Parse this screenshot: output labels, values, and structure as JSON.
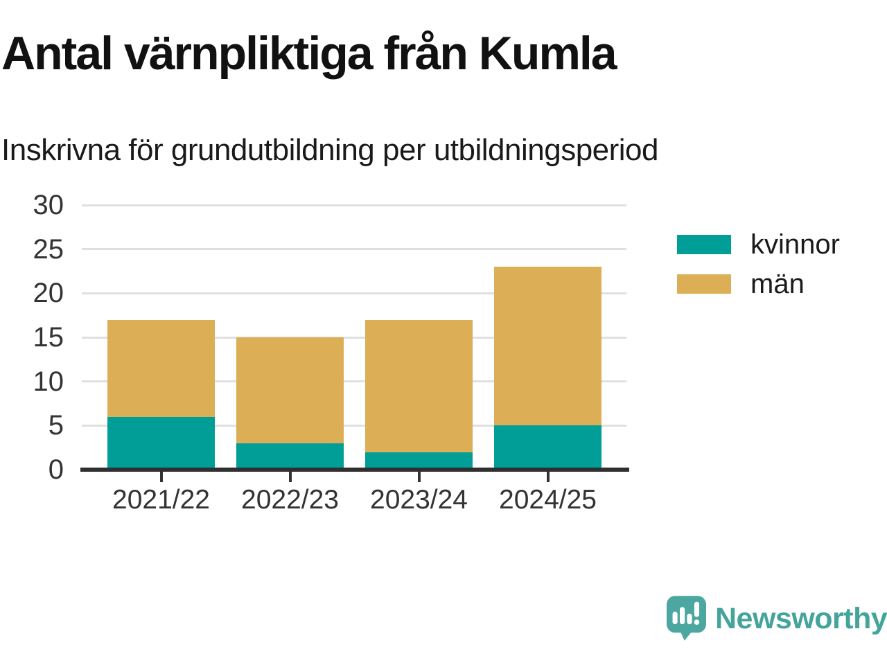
{
  "header": {
    "title": "Antal värnpliktiga från Kumla",
    "subtitle": "Inskrivna för grundutbildning per utbildningsperiod"
  },
  "chart_data": {
    "type": "bar",
    "stacked": true,
    "title": "Antal värnpliktiga från Kumla",
    "subtitle": "Inskrivna för grundutbildning per utbildningsperiod",
    "categories": [
      "2021/22",
      "2022/23",
      "2023/24",
      "2024/25"
    ],
    "series": [
      {
        "name": "kvinnor",
        "color": "#009e97",
        "values": [
          6,
          3,
          2,
          5
        ]
      },
      {
        "name": "män",
        "color": "#dcae55",
        "values": [
          11,
          12,
          15,
          18
        ]
      }
    ],
    "stack_totals": [
      17,
      15,
      17,
      23
    ],
    "xlabel": "",
    "ylabel": "",
    "ylim": [
      0,
      30
    ],
    "yticks": [
      0,
      5,
      10,
      15,
      20,
      25,
      30
    ],
    "grid": true,
    "legend_position": "right"
  },
  "branding": {
    "logo_text": "Newsworthy",
    "logo_icon": "newsworthy-speech-bubble-bar-chart-icon",
    "logo_text_color": "#44a49c",
    "logo_icon_color": "#4ba79f"
  },
  "colors": {
    "axis_text": "#333333",
    "gridline": "#e0e0e0",
    "axis_line": "#2f2f2f",
    "background": "#ffffff"
  }
}
